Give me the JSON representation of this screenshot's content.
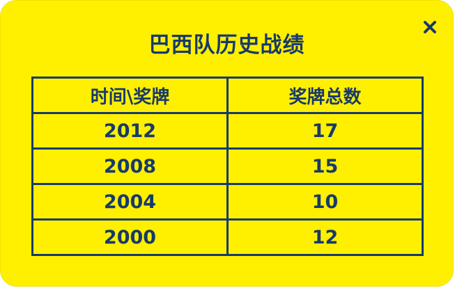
{
  "dialog": {
    "title": "巴西队历史战绩",
    "close_label": "✕"
  },
  "table": {
    "headers": [
      "时间\\奖牌",
      "奖牌总数"
    ],
    "rows": [
      [
        "2012",
        "17"
      ],
      [
        "2008",
        "15"
      ],
      [
        "2004",
        "10"
      ],
      [
        "2000",
        "12"
      ]
    ]
  },
  "colors": {
    "background": "#fff000",
    "text": "#173a6b",
    "border": "#173a6b"
  },
  "icons": {
    "close": "close-icon"
  }
}
